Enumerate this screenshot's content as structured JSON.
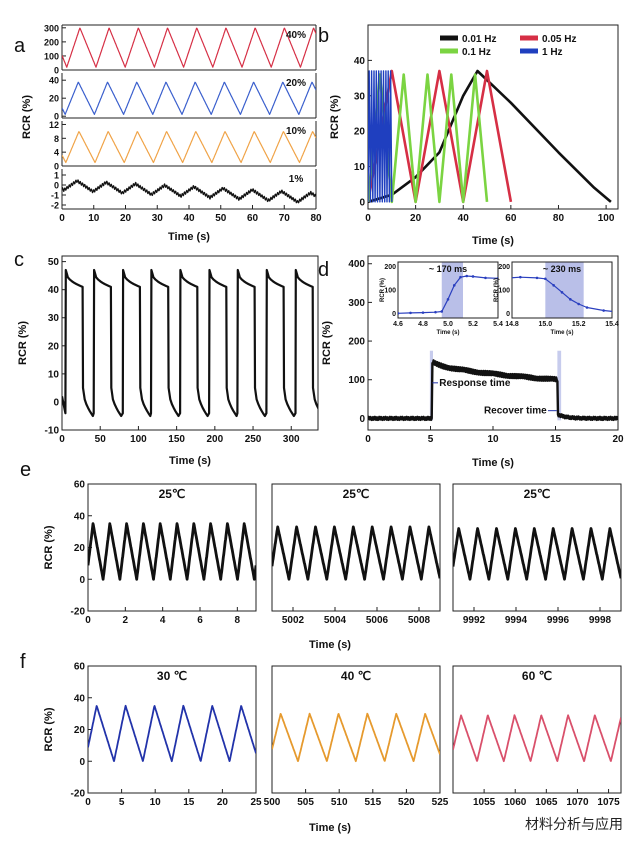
{
  "watermark": "材料分析与应用",
  "chart_data": [
    {
      "panel": "a",
      "type": "line",
      "xlabel": "Time (s)",
      "ylabel": "RCR (%)",
      "xlim": [
        0,
        80
      ],
      "xticks": [
        0,
        10,
        20,
        30,
        40,
        50,
        60,
        70,
        80
      ],
      "subplots": [
        {
          "label": "40%",
          "color": "#d62f45",
          "ylim": [
            0,
            320
          ],
          "yticks": [
            0,
            100,
            200,
            300
          ],
          "series": {
            "period": 9.2,
            "phase": 1.5,
            "min": 20,
            "max": 300,
            "shape": "triangle"
          }
        },
        {
          "label": "20%",
          "color": "#3a5fcd",
          "ylim": [
            -2,
            48
          ],
          "yticks": [
            0,
            20,
            40
          ],
          "series": {
            "period": 9.2,
            "phase": 1.0,
            "min": 2,
            "max": 38,
            "shape": "triangle"
          }
        },
        {
          "label": "10%",
          "color": "#f0a347",
          "ylim": [
            0,
            13
          ],
          "yticks": [
            0,
            4,
            8,
            12
          ],
          "series": {
            "period": 9.2,
            "phase": 1.2,
            "min": 1,
            "max": 10,
            "shape": "triangle"
          }
        },
        {
          "label": "1%",
          "color": "#111111",
          "ylim": [
            -2.4,
            1.6
          ],
          "yticks": [
            -2,
            -1,
            0,
            1
          ],
          "series": {
            "period": 9.2,
            "phase": 0.6,
            "min": -0.5,
            "max": 0.5,
            "shape": "triangle",
            "trend": -1.3
          }
        }
      ]
    },
    {
      "panel": "b",
      "type": "line",
      "xlabel": "Time (s)",
      "ylabel": "RCR (%)",
      "xlim": [
        0,
        105
      ],
      "ylim": [
        -2,
        50
      ],
      "xticks": [
        0,
        20,
        40,
        60,
        80,
        100
      ],
      "yticks": [
        0,
        10,
        20,
        30,
        40
      ],
      "legend": "top-right",
      "series": [
        {
          "name": "0.01 Hz",
          "color": "#111111",
          "points": [
            [
              0,
              0
            ],
            [
              10,
              2
            ],
            [
              20,
              7
            ],
            [
              30,
              14
            ],
            [
              40,
              30
            ],
            [
              46,
              37
            ],
            [
              60,
              28
            ],
            [
              80,
              14
            ],
            [
              95,
              4
            ],
            [
              102,
              0
            ]
          ]
        },
        {
          "name": "0.05 Hz",
          "color": "#d62f45",
          "period": 20,
          "cycles": 3,
          "start": 0,
          "max": 37,
          "min": 0
        },
        {
          "name": "0.1 Hz",
          "color": "#7bd442",
          "period": 10,
          "cycles": 5,
          "start": 0,
          "max": 36,
          "min": 0
        },
        {
          "name": "1 Hz",
          "color": "#1f3fbf",
          "period": 1,
          "cycles": 10,
          "start": 0,
          "max": 37,
          "min": 0
        }
      ]
    },
    {
      "panel": "c",
      "type": "line",
      "xlabel": "Time (s)",
      "ylabel": "RCR (%)",
      "xlim": [
        0,
        335
      ],
      "ylim": [
        -10,
        52
      ],
      "xticks": [
        0,
        50,
        100,
        150,
        200,
        250,
        300
      ],
      "yticks": [
        -10,
        0,
        10,
        20,
        30,
        40,
        50
      ],
      "series": {
        "color": "#111111",
        "pulse_starts": [
          5,
          42,
          80,
          117,
          155,
          193,
          230,
          268,
          306
        ],
        "pulse_width": 22,
        "high_start": 47,
        "high_end": 41,
        "low": -5
      }
    },
    {
      "panel": "d",
      "type": "line",
      "xlabel": "Time (s)",
      "ylabel": "RCR (%)",
      "xlim": [
        0,
        20
      ],
      "ylim": [
        -30,
        420
      ],
      "xticks": [
        0,
        5,
        10,
        15,
        20
      ],
      "yticks": [
        0,
        100,
        200,
        300,
        400
      ],
      "annotations": [
        "Response time",
        "Recover time"
      ],
      "series": {
        "color": "#111111",
        "on": 5.1,
        "off": 15.2,
        "high_start": 150,
        "high_end": 100,
        "base": 0
      },
      "insets": [
        {
          "title": "~ 170 ms",
          "xlabel": "Time (s)",
          "ylabel": "RCR (%)",
          "xlim": [
            4.6,
            5.4
          ],
          "xticks": [
            "4.6",
            "4.8",
            "5.0",
            "5.2",
            "5.4"
          ],
          "ylim": [
            -20,
            220
          ],
          "yticks": [
            0,
            100,
            200
          ],
          "shade": [
            4.95,
            5.12
          ],
          "points": [
            [
              4.6,
              0
            ],
            [
              4.7,
              2
            ],
            [
              4.8,
              3
            ],
            [
              4.9,
              5
            ],
            [
              4.95,
              8
            ],
            [
              5.0,
              60
            ],
            [
              5.05,
              120
            ],
            [
              5.1,
              155
            ],
            [
              5.15,
              160
            ],
            [
              5.2,
              158
            ],
            [
              5.3,
              152
            ],
            [
              5.4,
              150
            ]
          ]
        },
        {
          "title": "~ 230 ms",
          "xlabel": "Time (s)",
          "ylabel": "RCR (%)",
          "xlim": [
            14.8,
            15.4
          ],
          "xticks": [
            "14.8",
            "15.0",
            "15.2",
            "15.4"
          ],
          "ylim": [
            -20,
            220
          ],
          "yticks": [
            0,
            100,
            200
          ],
          "shade": [
            15.0,
            15.23
          ],
          "points": [
            [
              14.75,
              150
            ],
            [
              14.85,
              155
            ],
            [
              14.95,
              152
            ],
            [
              15.0,
              148
            ],
            [
              15.05,
              120
            ],
            [
              15.1,
              90
            ],
            [
              15.15,
              60
            ],
            [
              15.2,
              40
            ],
            [
              15.25,
              25
            ],
            [
              15.35,
              12
            ],
            [
              15.45,
              5
            ]
          ]
        }
      ]
    },
    {
      "panel": "e",
      "type": "line",
      "xlabel": "Time (s)",
      "ylabel": "RCR (%)",
      "ylim": [
        -20,
        60
      ],
      "yticks": [
        -20,
        0,
        20,
        40,
        60
      ],
      "subplots": [
        {
          "label": "25℃",
          "color": "#111111",
          "xlim": [
            0,
            9
          ],
          "xticks": [
            "0",
            "2",
            "4",
            "6",
            "8"
          ],
          "series": {
            "period": 0.9,
            "min": 0,
            "max": 35
          }
        },
        {
          "label": "25℃",
          "color": "#111111",
          "xlim": [
            5001,
            5009
          ],
          "xticks": [
            "5002",
            "5004",
            "5006",
            "5008"
          ],
          "series": {
            "period": 0.9,
            "min": 0,
            "max": 33
          }
        },
        {
          "label": "25℃",
          "color": "#111111",
          "xlim": [
            9991,
            9999
          ],
          "xticks": [
            "9992",
            "9994",
            "9996",
            "9998"
          ],
          "series": {
            "period": 0.9,
            "min": 0,
            "max": 32
          }
        }
      ]
    },
    {
      "panel": "f",
      "type": "line",
      "xlabel": "Time (s)",
      "ylabel": "RCR (%)",
      "ylim": [
        -20,
        60
      ],
      "yticks": [
        -20,
        0,
        20,
        40,
        60
      ],
      "subplots": [
        {
          "label": "30 ℃",
          "color": "#2233aa",
          "xlim": [
            0,
            25
          ],
          "xticks": [
            "0",
            "5",
            "10",
            "15",
            "20",
            "25"
          ],
          "series": {
            "period": 4.3,
            "min": 0,
            "max": 35
          }
        },
        {
          "label": "40 ℃",
          "color": "#e69a2e",
          "xlim": [
            500,
            525
          ],
          "xticks": [
            "500",
            "505",
            "510",
            "515",
            "520",
            "525"
          ],
          "series": {
            "period": 4.3,
            "min": 0,
            "max": 30
          }
        },
        {
          "label": "60 ℃",
          "color": "#d9506b",
          "xlim": [
            1050,
            1077
          ],
          "xticks": [
            "1055",
            "1060",
            "1065",
            "1070",
            "1075"
          ],
          "series": {
            "period": 4.3,
            "min": 0,
            "max": 29
          }
        }
      ]
    }
  ]
}
